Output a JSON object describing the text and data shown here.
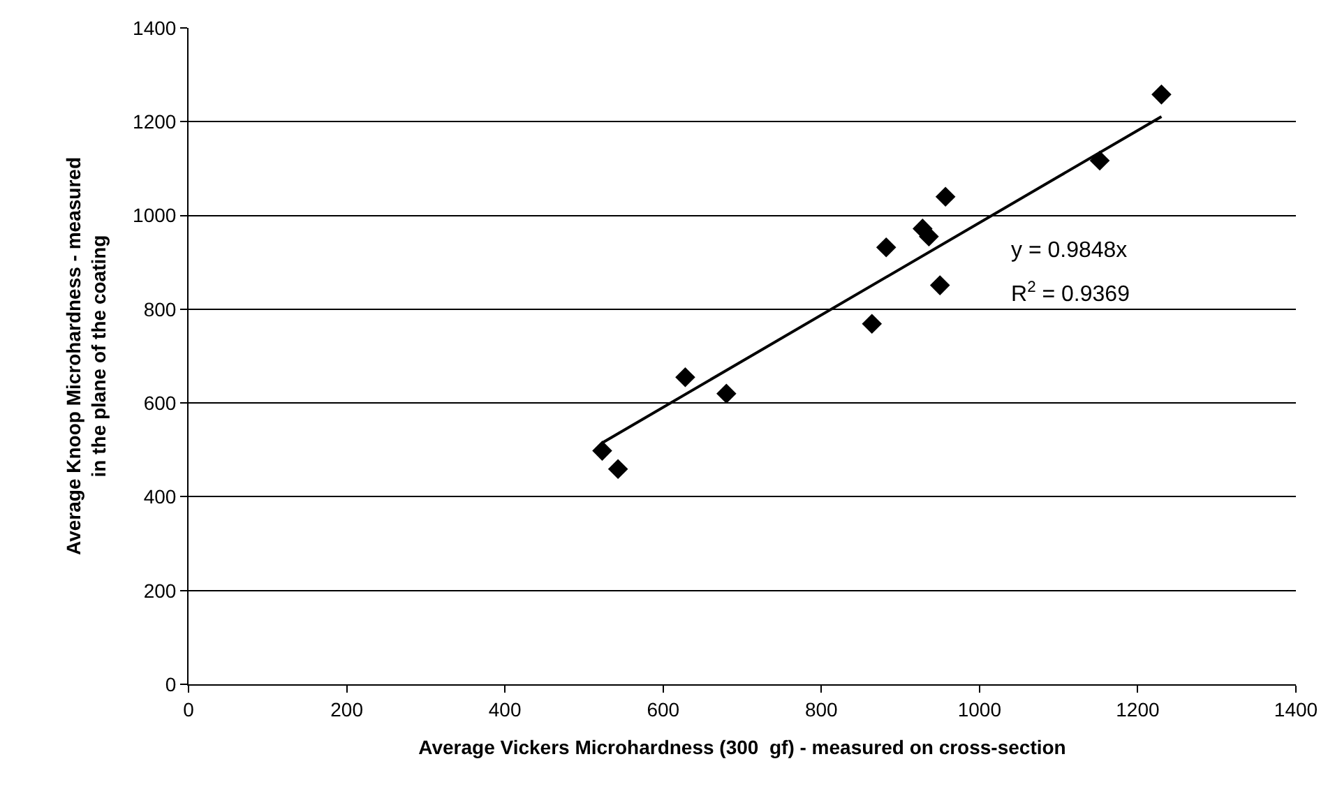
{
  "chart_data": {
    "type": "scatter",
    "xlabel": "Average Vickers Microhardness (300  gf) - measured on cross-section",
    "ylabel": "Average Knoop Microhardness - measured\nin the plane of the coating",
    "x": [
      523,
      543,
      628,
      680,
      864,
      882,
      928,
      936,
      950,
      957,
      1152,
      1230
    ],
    "series": [
      {
        "color": "#000000",
        "marker": "diamond",
        "values": [
          498,
          459,
          655,
          620,
          769,
          932,
          972,
          955,
          851,
          1040,
          1117,
          1258
        ]
      },
      {
        "type": "line",
        "color": "#000000",
        "marker": "none",
        "x": [
          523,
          1230
        ],
        "values": [
          515,
          1211
        ]
      }
    ],
    "annotations": [
      "y = 0.9848x",
      "R$^{2}$ = 0.9369"
    ],
    "xlim": [
      0,
      1400
    ],
    "xticks": [
      0,
      200,
      400,
      600,
      800,
      1000,
      1200,
      1400
    ],
    "ylim": [
      0,
      1400
    ],
    "yticks": [
      0,
      200,
      400,
      600,
      800,
      1000,
      1200,
      1400
    ],
    "grid": "y"
  }
}
